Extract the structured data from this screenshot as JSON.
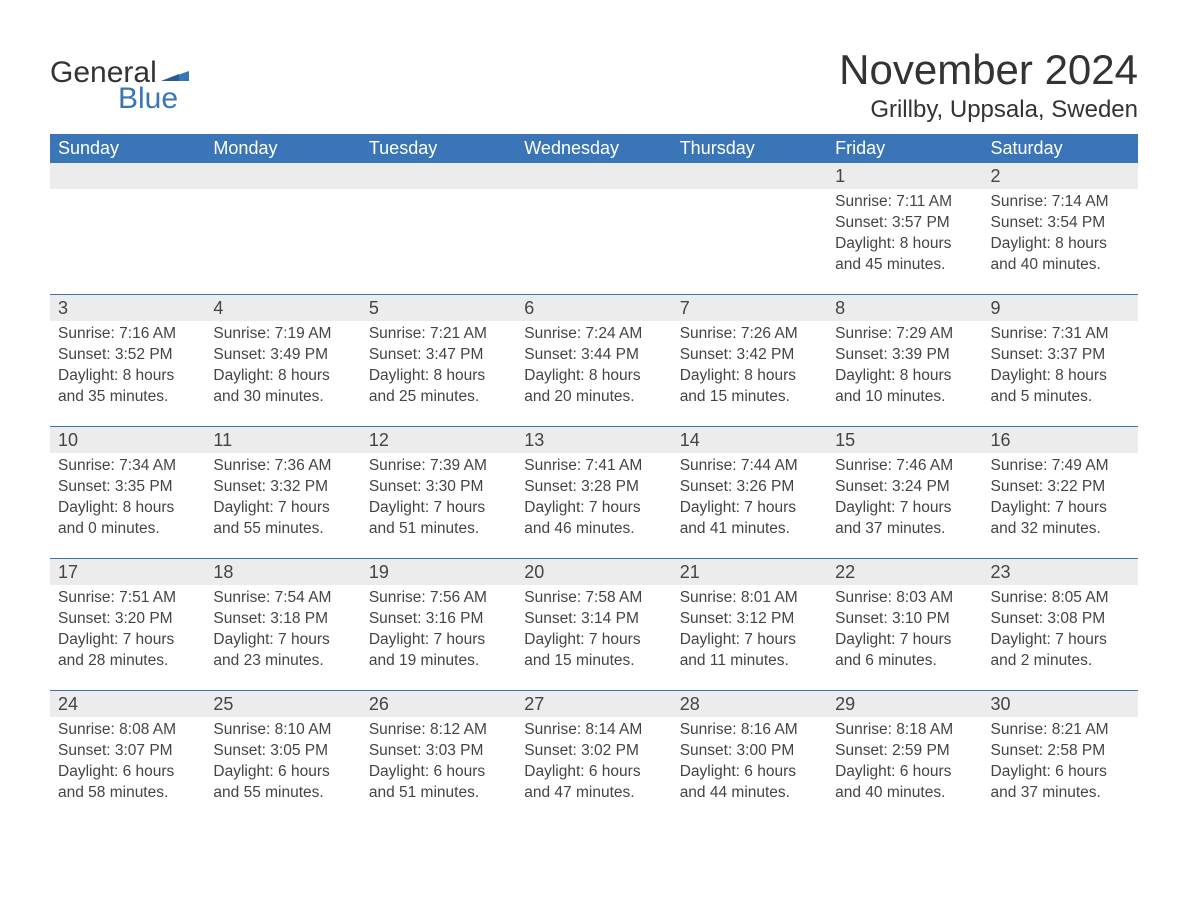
{
  "brand": {
    "general": "General",
    "blue": "Blue",
    "colors": {
      "brand_blue": "#3a76b7",
      "text": "#3b3b3b"
    }
  },
  "header": {
    "title": "November 2024",
    "location": "Grillby, Uppsala, Sweden"
  },
  "columns": [
    "Sunday",
    "Monday",
    "Tuesday",
    "Wednesday",
    "Thursday",
    "Friday",
    "Saturday"
  ],
  "weeks": [
    [
      null,
      null,
      null,
      null,
      null,
      {
        "n": "1",
        "sunrise": "Sunrise: 7:11 AM",
        "sunset": "Sunset: 3:57 PM",
        "day1": "Daylight: 8 hours",
        "day2": "and 45 minutes."
      },
      {
        "n": "2",
        "sunrise": "Sunrise: 7:14 AM",
        "sunset": "Sunset: 3:54 PM",
        "day1": "Daylight: 8 hours",
        "day2": "and 40 minutes."
      }
    ],
    [
      {
        "n": "3",
        "sunrise": "Sunrise: 7:16 AM",
        "sunset": "Sunset: 3:52 PM",
        "day1": "Daylight: 8 hours",
        "day2": "and 35 minutes."
      },
      {
        "n": "4",
        "sunrise": "Sunrise: 7:19 AM",
        "sunset": "Sunset: 3:49 PM",
        "day1": "Daylight: 8 hours",
        "day2": "and 30 minutes."
      },
      {
        "n": "5",
        "sunrise": "Sunrise: 7:21 AM",
        "sunset": "Sunset: 3:47 PM",
        "day1": "Daylight: 8 hours",
        "day2": "and 25 minutes."
      },
      {
        "n": "6",
        "sunrise": "Sunrise: 7:24 AM",
        "sunset": "Sunset: 3:44 PM",
        "day1": "Daylight: 8 hours",
        "day2": "and 20 minutes."
      },
      {
        "n": "7",
        "sunrise": "Sunrise: 7:26 AM",
        "sunset": "Sunset: 3:42 PM",
        "day1": "Daylight: 8 hours",
        "day2": "and 15 minutes."
      },
      {
        "n": "8",
        "sunrise": "Sunrise: 7:29 AM",
        "sunset": "Sunset: 3:39 PM",
        "day1": "Daylight: 8 hours",
        "day2": "and 10 minutes."
      },
      {
        "n": "9",
        "sunrise": "Sunrise: 7:31 AM",
        "sunset": "Sunset: 3:37 PM",
        "day1": "Daylight: 8 hours",
        "day2": "and 5 minutes."
      }
    ],
    [
      {
        "n": "10",
        "sunrise": "Sunrise: 7:34 AM",
        "sunset": "Sunset: 3:35 PM",
        "day1": "Daylight: 8 hours",
        "day2": "and 0 minutes."
      },
      {
        "n": "11",
        "sunrise": "Sunrise: 7:36 AM",
        "sunset": "Sunset: 3:32 PM",
        "day1": "Daylight: 7 hours",
        "day2": "and 55 minutes."
      },
      {
        "n": "12",
        "sunrise": "Sunrise: 7:39 AM",
        "sunset": "Sunset: 3:30 PM",
        "day1": "Daylight: 7 hours",
        "day2": "and 51 minutes."
      },
      {
        "n": "13",
        "sunrise": "Sunrise: 7:41 AM",
        "sunset": "Sunset: 3:28 PM",
        "day1": "Daylight: 7 hours",
        "day2": "and 46 minutes."
      },
      {
        "n": "14",
        "sunrise": "Sunrise: 7:44 AM",
        "sunset": "Sunset: 3:26 PM",
        "day1": "Daylight: 7 hours",
        "day2": "and 41 minutes."
      },
      {
        "n": "15",
        "sunrise": "Sunrise: 7:46 AM",
        "sunset": "Sunset: 3:24 PM",
        "day1": "Daylight: 7 hours",
        "day2": "and 37 minutes."
      },
      {
        "n": "16",
        "sunrise": "Sunrise: 7:49 AM",
        "sunset": "Sunset: 3:22 PM",
        "day1": "Daylight: 7 hours",
        "day2": "and 32 minutes."
      }
    ],
    [
      {
        "n": "17",
        "sunrise": "Sunrise: 7:51 AM",
        "sunset": "Sunset: 3:20 PM",
        "day1": "Daylight: 7 hours",
        "day2": "and 28 minutes."
      },
      {
        "n": "18",
        "sunrise": "Sunrise: 7:54 AM",
        "sunset": "Sunset: 3:18 PM",
        "day1": "Daylight: 7 hours",
        "day2": "and 23 minutes."
      },
      {
        "n": "19",
        "sunrise": "Sunrise: 7:56 AM",
        "sunset": "Sunset: 3:16 PM",
        "day1": "Daylight: 7 hours",
        "day2": "and 19 minutes."
      },
      {
        "n": "20",
        "sunrise": "Sunrise: 7:58 AM",
        "sunset": "Sunset: 3:14 PM",
        "day1": "Daylight: 7 hours",
        "day2": "and 15 minutes."
      },
      {
        "n": "21",
        "sunrise": "Sunrise: 8:01 AM",
        "sunset": "Sunset: 3:12 PM",
        "day1": "Daylight: 7 hours",
        "day2": "and 11 minutes."
      },
      {
        "n": "22",
        "sunrise": "Sunrise: 8:03 AM",
        "sunset": "Sunset: 3:10 PM",
        "day1": "Daylight: 7 hours",
        "day2": "and 6 minutes."
      },
      {
        "n": "23",
        "sunrise": "Sunrise: 8:05 AM",
        "sunset": "Sunset: 3:08 PM",
        "day1": "Daylight: 7 hours",
        "day2": "and 2 minutes."
      }
    ],
    [
      {
        "n": "24",
        "sunrise": "Sunrise: 8:08 AM",
        "sunset": "Sunset: 3:07 PM",
        "day1": "Daylight: 6 hours",
        "day2": "and 58 minutes."
      },
      {
        "n": "25",
        "sunrise": "Sunrise: 8:10 AM",
        "sunset": "Sunset: 3:05 PM",
        "day1": "Daylight: 6 hours",
        "day2": "and 55 minutes."
      },
      {
        "n": "26",
        "sunrise": "Sunrise: 8:12 AM",
        "sunset": "Sunset: 3:03 PM",
        "day1": "Daylight: 6 hours",
        "day2": "and 51 minutes."
      },
      {
        "n": "27",
        "sunrise": "Sunrise: 8:14 AM",
        "sunset": "Sunset: 3:02 PM",
        "day1": "Daylight: 6 hours",
        "day2": "and 47 minutes."
      },
      {
        "n": "28",
        "sunrise": "Sunrise: 8:16 AM",
        "sunset": "Sunset: 3:00 PM",
        "day1": "Daylight: 6 hours",
        "day2": "and 44 minutes."
      },
      {
        "n": "29",
        "sunrise": "Sunrise: 8:18 AM",
        "sunset": "Sunset: 2:59 PM",
        "day1": "Daylight: 6 hours",
        "day2": "and 40 minutes."
      },
      {
        "n": "30",
        "sunrise": "Sunrise: 8:21 AM",
        "sunset": "Sunset: 2:58 PM",
        "day1": "Daylight: 6 hours",
        "day2": "and 37 minutes."
      }
    ]
  ],
  "styling": {
    "header_row_bg": "#3a76b7",
    "header_row_text": "#ffffff",
    "daynum_bg": "#ececec",
    "row_separator": "#3a76b7",
    "page_bg": "#ffffff",
    "title_fontsize": 42,
    "location_fontsize": 24,
    "column_header_fontsize": 18,
    "cell_fontsize": 15.5,
    "font_family": "Arial"
  }
}
